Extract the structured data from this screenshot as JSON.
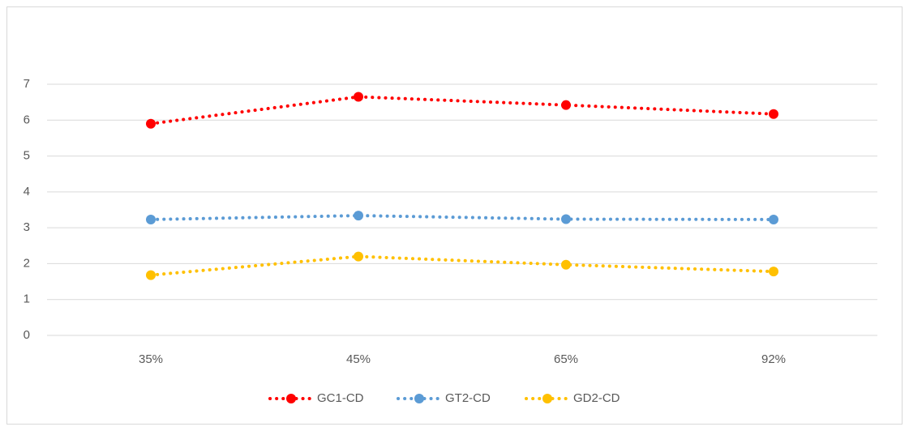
{
  "chart_data": {
    "type": "line",
    "categories": [
      "35%",
      "45%",
      "65%",
      "92%"
    ],
    "series": [
      {
        "name": "GC1-CD",
        "color": "#ff0000",
        "values": [
          5.9,
          6.65,
          6.42,
          6.17
        ]
      },
      {
        "name": "GT2-CD",
        "color": "#5b9bd5",
        "values": [
          3.23,
          3.34,
          3.24,
          3.23
        ]
      },
      {
        "name": "GD2-CD",
        "color": "#ffc000",
        "values": [
          1.68,
          2.2,
          1.97,
          1.78
        ]
      }
    ],
    "ylim": [
      0,
      7
    ],
    "yticks": [
      0,
      1,
      2,
      3,
      4,
      5,
      6,
      7
    ],
    "grid": true,
    "legend": "bottom"
  }
}
